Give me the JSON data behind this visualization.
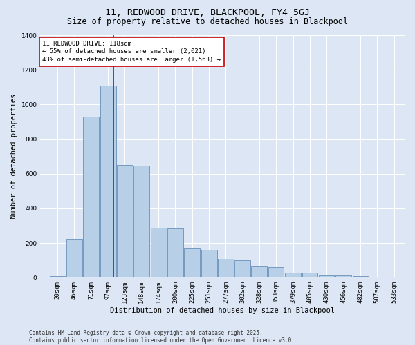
{
  "title": "11, REDWOOD DRIVE, BLACKPOOL, FY4 5GJ",
  "subtitle": "Size of property relative to detached houses in Blackpool",
  "xlabel": "Distribution of detached houses by size in Blackpool",
  "ylabel": "Number of detached properties",
  "footer_line1": "Contains HM Land Registry data © Crown copyright and database right 2025.",
  "footer_line2": "Contains public sector information licensed under the Open Government Licence v3.0.",
  "property_label": "11 REDWOOD DRIVE: 118sqm",
  "pct_smaller_label": "← 55% of detached houses are smaller (2,021)",
  "pct_larger_label": "43% of semi-detached houses are larger (1,563) →",
  "annotation_box_color": "#cc0000",
  "categories": [
    "20sqm",
    "46sqm",
    "71sqm",
    "97sqm",
    "123sqm",
    "148sqm",
    "174sqm",
    "200sqm",
    "225sqm",
    "251sqm",
    "277sqm",
    "302sqm",
    "328sqm",
    "353sqm",
    "379sqm",
    "405sqm",
    "430sqm",
    "456sqm",
    "482sqm",
    "507sqm",
    "533sqm"
  ],
  "bar_centers": [
    33,
    58.5,
    84,
    110,
    135.5,
    161,
    187,
    212.5,
    238,
    264,
    289.5,
    315,
    340.5,
    366,
    392,
    417.5,
    443,
    469,
    494.5,
    520,
    546
  ],
  "bar_widths": [
    25,
    25,
    25,
    25,
    25,
    25,
    25,
    25,
    25,
    25,
    25,
    25,
    25,
    25,
    25,
    25,
    25,
    25,
    25,
    25,
    25
  ],
  "bar_heights": [
    10,
    220,
    930,
    1110,
    650,
    645,
    290,
    285,
    170,
    160,
    110,
    100,
    65,
    60,
    30,
    28,
    15,
    12,
    8,
    5,
    2
  ],
  "bar_color": "#b8cfe8",
  "bar_edge_color": "#5580b0",
  "vline_x": 118,
  "vline_color": "#cc0000",
  "background_color": "#dce6f4",
  "plot_bg_color": "#dce6f4",
  "ylim": [
    0,
    1400
  ],
  "yticks": [
    0,
    200,
    400,
    600,
    800,
    1000,
    1200,
    1400
  ],
  "xlim_left": 7,
  "xlim_right": 562,
  "grid_color": "#ffffff",
  "title_fontsize": 9.5,
  "subtitle_fontsize": 8.5,
  "axis_label_fontsize": 7.5,
  "tick_fontsize": 6.5,
  "annotation_fontsize": 6.5,
  "footer_fontsize": 5.5,
  "ylabel_fontsize": 7.5
}
